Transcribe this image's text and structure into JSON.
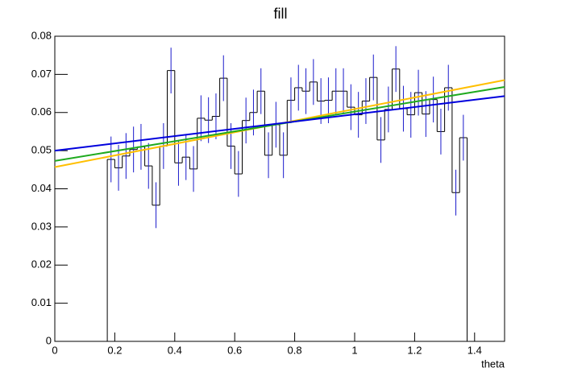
{
  "chart_data": {
    "type": "histogram",
    "title": "fill",
    "x_label": "theta",
    "bins": [
      0.175,
      0.2,
      0.225,
      0.25,
      0.275,
      0.3,
      0.325,
      0.35,
      0.375,
      0.4,
      0.425,
      0.45,
      0.475,
      0.5,
      0.525,
      0.55,
      0.575,
      0.6,
      0.625,
      0.65,
      0.675,
      0.7,
      0.725,
      0.75,
      0.775,
      0.8,
      0.825,
      0.85,
      0.875,
      0.9,
      0.925,
      0.95,
      0.975,
      1.0,
      1.025,
      1.05,
      1.075,
      1.1,
      1.125,
      1.15,
      1.175,
      1.2,
      1.225,
      1.25,
      1.275,
      1.3,
      1.325,
      1.35,
      1.375
    ],
    "values": [
      0.0477,
      0.0455,
      0.0486,
      0.0503,
      0.051,
      0.046,
      0.0357,
      0.0512,
      0.071,
      0.0468,
      0.0483,
      0.0452,
      0.0585,
      0.058,
      0.059,
      0.069,
      0.0512,
      0.0439,
      0.0579,
      0.06,
      0.0656,
      0.0488,
      0.0568,
      0.0488,
      0.0632,
      0.0665,
      0.0656,
      0.068,
      0.063,
      0.0632,
      0.0656,
      0.0656,
      0.0614,
      0.0594,
      0.063,
      0.0692,
      0.0528,
      0.0608,
      0.0714,
      0.061,
      0.0594,
      0.0652,
      0.0596,
      0.0634,
      0.055,
      0.0665,
      0.039,
      0.0534
    ],
    "errors": [
      0.006,
      0.006,
      0.006,
      0.006,
      0.006,
      0.006,
      0.006,
      0.006,
      0.006,
      0.006,
      0.006,
      0.006,
      0.006,
      0.006,
      0.006,
      0.006,
      0.006,
      0.006,
      0.006,
      0.006,
      0.006,
      0.006,
      0.006,
      0.006,
      0.006,
      0.006,
      0.006,
      0.006,
      0.006,
      0.006,
      0.006,
      0.006,
      0.006,
      0.006,
      0.006,
      0.006,
      0.006,
      0.006,
      0.006,
      0.006,
      0.006,
      0.006,
      0.006,
      0.006,
      0.006,
      0.006,
      0.006,
      0.006
    ],
    "color": "#000000",
    "error_color": "#1a1acc",
    "series": [
      {
        "color": "#ffbf00",
        "x": [
          0,
          1.5
        ],
        "values": [
          0.0457,
          0.0685
        ]
      },
      {
        "color": "#1faa1f",
        "x": [
          0,
          1.5
        ],
        "values": [
          0.0473,
          0.0667
        ]
      },
      {
        "color": "#0000dd",
        "x": [
          0,
          1.5
        ],
        "values": [
          0.05,
          0.0643
        ]
      }
    ],
    "xlim": [
      0,
      1.5
    ],
    "xticks": [
      0,
      0.2,
      0.4,
      0.6,
      0.8,
      1,
      1.2,
      1.4
    ],
    "ylim": [
      0,
      0.08
    ],
    "yticks": [
      0,
      0.01,
      0.02,
      0.03,
      0.04,
      0.05,
      0.06,
      0.07,
      0.08
    ]
  }
}
